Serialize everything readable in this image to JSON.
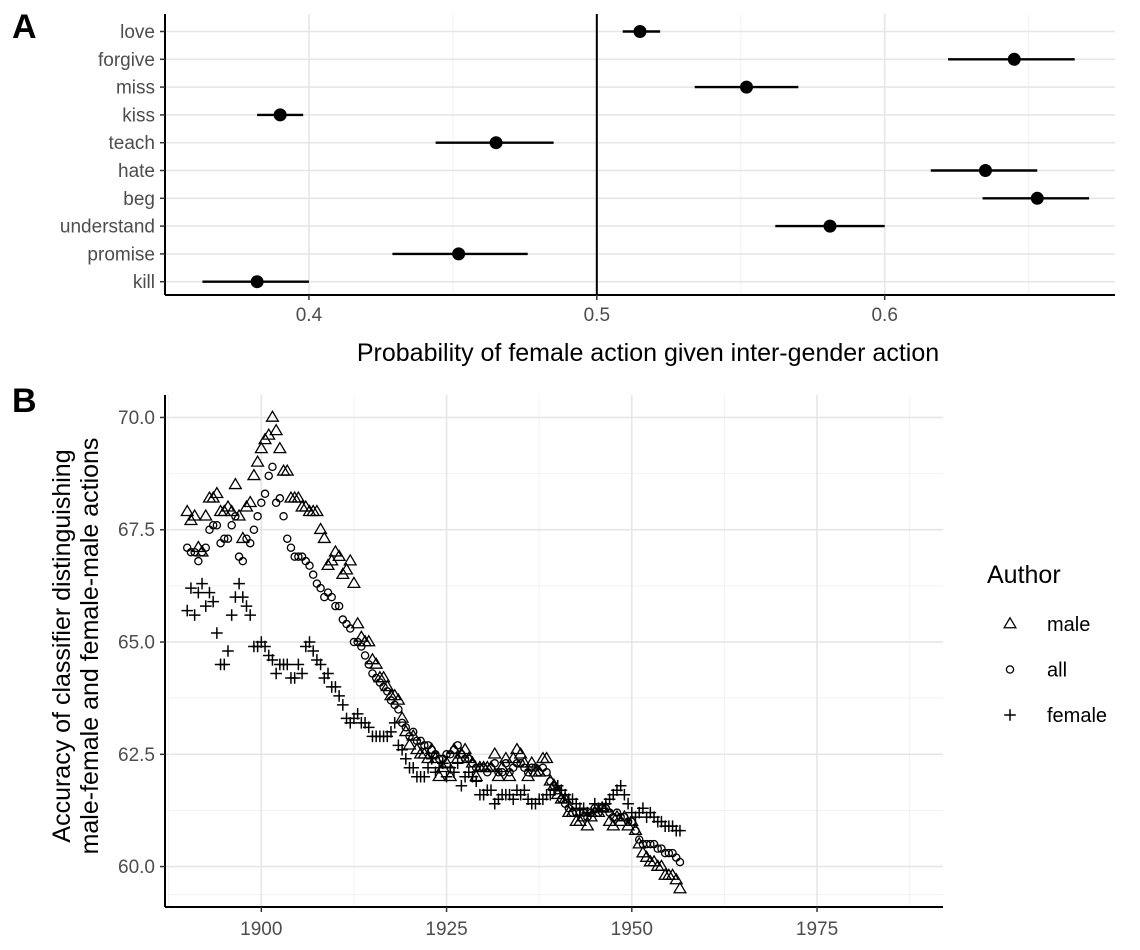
{
  "chart_data": [
    {
      "panel": "A",
      "type": "scatter",
      "subtype": "point-range",
      "xlabel": "Probability of female action given inter-gender action",
      "ylabel": "",
      "xlim": [
        0.35,
        0.68
      ],
      "x_ticks": [
        0.4,
        0.5,
        0.6
      ],
      "x_tick_labels": [
        "0.4",
        "0.5",
        "0.6"
      ],
      "reference_line": 0.5,
      "points": [
        {
          "label": "love",
          "value": 0.515,
          "low": 0.509,
          "high": 0.522
        },
        {
          "label": "forgive",
          "value": 0.645,
          "low": 0.622,
          "high": 0.666
        },
        {
          "label": "miss",
          "value": 0.552,
          "low": 0.534,
          "high": 0.57
        },
        {
          "label": "kiss",
          "value": 0.39,
          "low": 0.382,
          "high": 0.398
        },
        {
          "label": "teach",
          "value": 0.465,
          "low": 0.444,
          "high": 0.485
        },
        {
          "label": "hate",
          "value": 0.635,
          "low": 0.616,
          "high": 0.653
        },
        {
          "label": "beg",
          "value": 0.653,
          "low": 0.634,
          "high": 0.671
        },
        {
          "label": "understand",
          "value": 0.581,
          "low": 0.562,
          "high": 0.6
        },
        {
          "label": "promise",
          "value": 0.452,
          "low": 0.429,
          "high": 0.476
        },
        {
          "label": "kill",
          "value": 0.382,
          "low": 0.363,
          "high": 0.4
        }
      ]
    },
    {
      "panel": "B",
      "type": "scatter",
      "xlabel": "",
      "ylabel_lines": [
        "Accuracy of classifier distinguishing",
        "male-female and female-male actions"
      ],
      "xlim": [
        1887,
        1992
      ],
      "ylim": [
        59.1,
        70.5
      ],
      "x_ticks": [
        1900,
        1925,
        1950,
        1975
      ],
      "x_tick_labels": [
        "1900",
        "1925",
        "1950",
        "1975"
      ],
      "y_ticks": [
        60.0,
        62.5,
        65.0,
        67.5,
        70.0
      ],
      "y_tick_labels": [
        "60.0",
        "62.5",
        "65.0",
        "67.5",
        "70.0"
      ],
      "legend": {
        "title": "Author",
        "position": "right",
        "entries": [
          {
            "name": "male",
            "shape": "triangle"
          },
          {
            "name": "all",
            "shape": "circle"
          },
          {
            "name": "female",
            "shape": "plus"
          }
        ]
      },
      "x_start": 1890,
      "x_step": 0.5,
      "series": [
        {
          "name": "male",
          "shape": "triangle",
          "values": [
            67.9,
            67.7,
            67.8,
            67.1,
            67.0,
            67.8,
            68.2,
            68.2,
            68.3,
            67.9,
            67.9,
            68.0,
            67.9,
            68.5,
            67.8,
            67.3,
            68.0,
            68.1,
            68.7,
            69.0,
            69.3,
            69.5,
            69.6,
            70.0,
            69.7,
            69.3,
            68.8,
            68.8,
            68.2,
            68.2,
            68.2,
            68.0,
            68.0,
            67.9,
            67.9,
            67.9,
            67.5,
            67.3,
            66.7,
            66.8,
            67.0,
            66.9,
            66.5,
            66.6,
            66.8,
            66.3,
            65.4,
            65.1,
            65.0,
            65.0,
            64.6,
            64.5,
            64.2,
            64.2,
            64.0,
            63.8,
            63.8,
            63.7,
            63.3,
            63.0,
            62.7,
            62.9,
            62.6,
            62.5,
            62.5,
            62.4,
            62.6,
            62.4,
            62.0,
            62.2,
            62.3,
            62.0,
            62.6,
            62.4,
            62.5,
            62.6,
            62.4,
            62.3,
            62.0,
            62.2,
            62.2,
            62.2,
            62.2,
            62.5,
            62.0,
            62.2,
            62.4,
            62.0,
            62.4,
            62.6,
            62.5,
            62.3,
            62.0,
            62.3,
            62.1,
            62.1,
            62.4,
            62.4,
            61.9,
            61.8,
            61.6,
            61.5,
            61.5,
            61.2,
            61.2,
            61.0,
            61.0,
            61.1,
            60.9,
            61.1,
            61.2,
            61.2,
            61.3,
            61.3,
            61.0,
            60.9,
            61.1,
            61.0,
            61.1,
            60.9,
            61.0,
            60.8,
            60.5,
            60.3,
            60.2,
            60.1,
            60.1,
            60.0,
            60.0,
            59.8,
            59.8,
            59.8,
            59.7,
            59.5
          ]
        },
        {
          "name": "all",
          "shape": "circle",
          "values": [
            67.1,
            67.0,
            67.0,
            66.8,
            67.0,
            67.1,
            67.5,
            67.6,
            67.6,
            67.2,
            67.3,
            67.3,
            67.6,
            67.8,
            66.9,
            66.8,
            67.3,
            67.2,
            67.5,
            67.8,
            68.1,
            68.3,
            68.7,
            68.9,
            68.1,
            68.2,
            67.8,
            67.3,
            67.1,
            66.9,
            66.9,
            66.9,
            66.8,
            66.7,
            66.5,
            66.3,
            66.2,
            66.0,
            66.1,
            66.0,
            65.8,
            65.8,
            65.5,
            65.4,
            65.3,
            65.0,
            65.0,
            64.9,
            64.7,
            64.5,
            64.3,
            64.2,
            64.1,
            64.0,
            63.9,
            63.7,
            63.6,
            63.5,
            63.2,
            63.1,
            62.9,
            63.0,
            62.8,
            62.8,
            62.7,
            62.7,
            62.6,
            62.5,
            62.4,
            62.4,
            62.5,
            62.5,
            62.6,
            62.7,
            62.5,
            62.4,
            62.4,
            62.3,
            62.2,
            62.2,
            62.2,
            62.1,
            62.2,
            62.3,
            62.1,
            62.1,
            62.3,
            62.1,
            62.2,
            62.3,
            62.3,
            62.2,
            62.1,
            62.2,
            62.2,
            62.1,
            62.2,
            62.1,
            61.9,
            61.8,
            61.7,
            61.5,
            61.4,
            61.3,
            61.2,
            61.2,
            61.2,
            61.2,
            61.1,
            61.2,
            61.3,
            61.2,
            61.3,
            61.3,
            61.2,
            61.1,
            61.2,
            61.1,
            61.1,
            61.0,
            61.0,
            60.8,
            60.6,
            60.5,
            60.5,
            60.5,
            60.5,
            60.4,
            60.4,
            60.3,
            60.3,
            60.3,
            60.2,
            60.1
          ]
        },
        {
          "name": "female",
          "shape": "plus",
          "values": [
            65.7,
            66.2,
            65.6,
            66.1,
            66.3,
            65.8,
            66.1,
            65.9,
            65.2,
            64.5,
            64.5,
            64.8,
            65.6,
            66.0,
            66.3,
            66.0,
            65.8,
            65.6,
            64.9,
            64.9,
            65.0,
            64.9,
            64.7,
            64.6,
            64.3,
            64.5,
            64.5,
            64.5,
            64.2,
            64.2,
            64.5,
            64.3,
            64.9,
            65.0,
            64.8,
            64.6,
            64.5,
            64.2,
            64.3,
            64.0,
            64.0,
            63.8,
            63.6,
            63.3,
            63.2,
            63.3,
            63.4,
            63.2,
            63.2,
            63.1,
            62.9,
            62.9,
            62.9,
            62.9,
            62.9,
            63.0,
            63.2,
            62.7,
            62.6,
            62.4,
            62.2,
            62.2,
            62.0,
            62.0,
            62.0,
            62.2,
            62.4,
            62.1,
            62.2,
            62.3,
            62.0,
            62.2,
            62.1,
            62.3,
            61.8,
            62.0,
            62.1,
            62.0,
            61.9,
            61.6,
            61.6,
            61.7,
            61.7,
            61.4,
            61.5,
            61.6,
            61.6,
            61.6,
            61.5,
            61.7,
            61.6,
            61.7,
            61.5,
            61.4,
            61.4,
            61.5,
            61.5,
            61.6,
            61.6,
            61.7,
            61.8,
            61.7,
            61.6,
            61.5,
            61.5,
            61.4,
            61.3,
            61.3,
            61.2,
            61.2,
            61.4,
            61.3,
            61.3,
            61.4,
            61.5,
            61.6,
            61.7,
            61.8,
            61.6,
            61.4,
            61.2,
            61.1,
            61.2,
            61.3,
            61.1,
            61.2,
            61.1,
            61.0,
            61.0,
            60.9,
            60.9,
            60.9,
            60.8,
            60.8
          ]
        }
      ]
    }
  ]
}
